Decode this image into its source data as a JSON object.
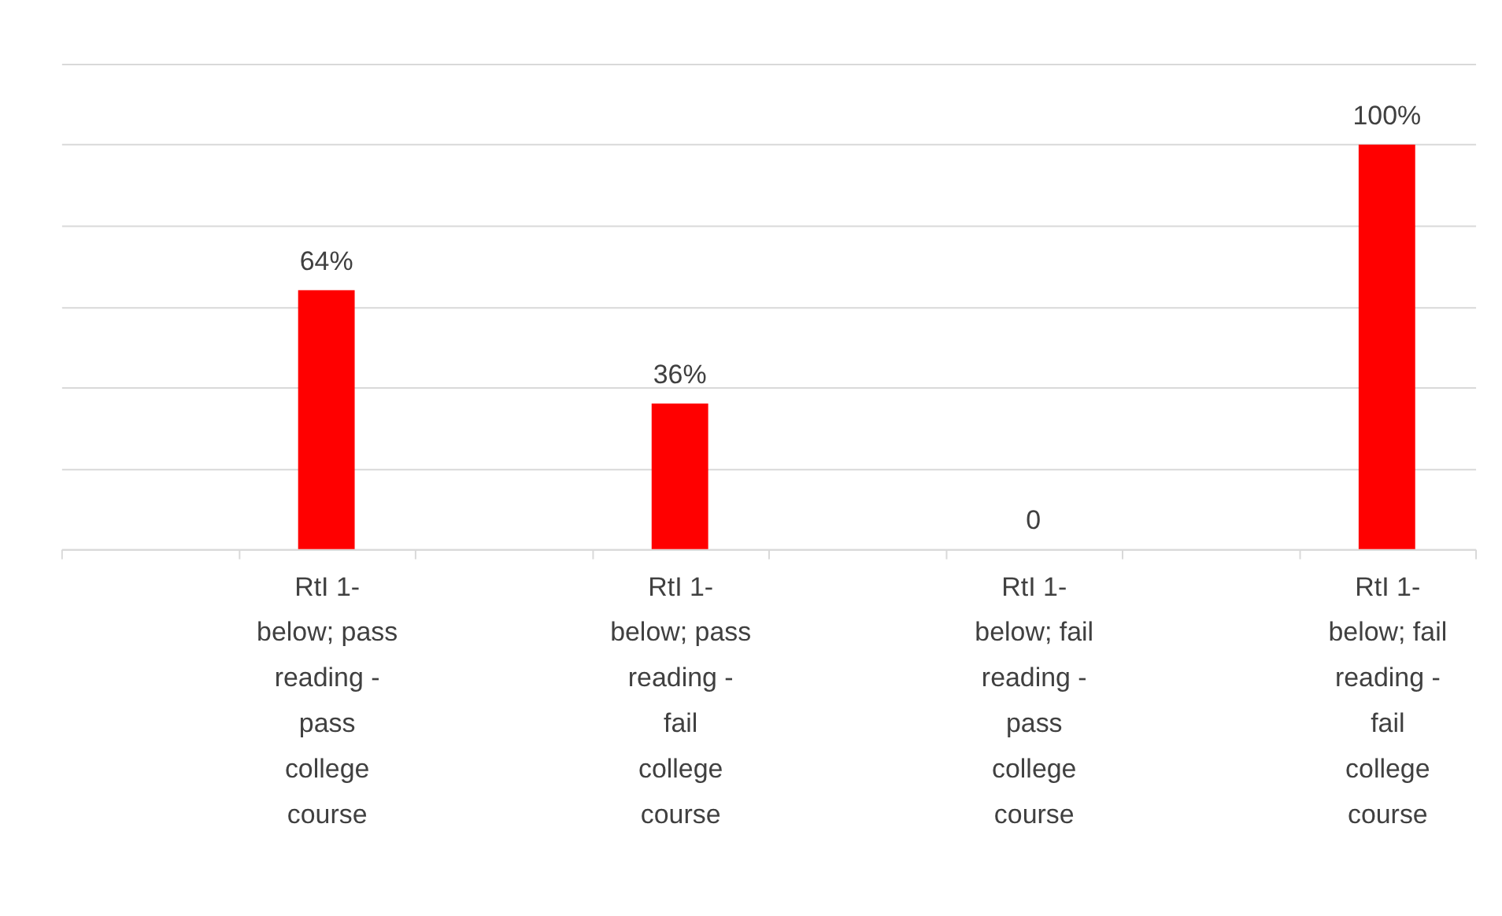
{
  "chart_data": {
    "type": "bar",
    "categories": [
      null,
      "RtI 1-below; pass reading - pass college course",
      null,
      "RtI 1-below; pass reading - fail college course",
      null,
      "RtI 1-below; fail reading - pass college course",
      null,
      "RtI 1-below; fail reading - fail college course"
    ],
    "values": [
      null,
      64,
      null,
      36,
      null,
      0,
      null,
      100
    ],
    "value_labels": [
      null,
      "64%",
      null,
      "36%",
      null,
      "0",
      null,
      "100%"
    ],
    "color": "#ff0000",
    "ylim": [
      0,
      120
    ],
    "yticks": [
      {
        "value": 0,
        "label": null
      },
      {
        "value": 20,
        "label": null
      },
      {
        "value": 40,
        "label": null
      },
      {
        "value": 60,
        "label": null
      },
      {
        "value": 80,
        "label": null
      },
      {
        "value": 100,
        "label": null
      },
      {
        "value": 120,
        "label": null
      }
    ],
    "grid": "y",
    "tick_labels": "x"
  }
}
